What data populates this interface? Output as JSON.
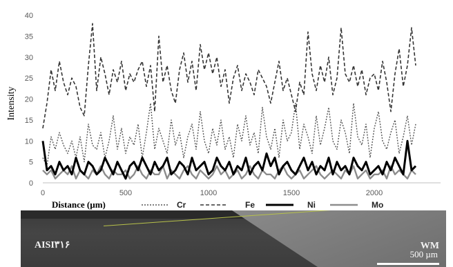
{
  "chart_data": {
    "type": "line",
    "ylabel": "Intensity",
    "xlabel": "Distance (µm)",
    "xlim": [
      0,
      2400
    ],
    "ylim": [
      0,
      40
    ],
    "yticks": [
      0,
      5,
      10,
      15,
      20,
      25,
      30,
      35,
      40
    ],
    "xticks": [
      0,
      500,
      1000,
      1500,
      2000
    ],
    "grid": false,
    "legend_position": "bottom",
    "series": [
      {
        "name": "Cr",
        "style": "dotted",
        "color": "#555555",
        "x": [
          0,
          25,
          50,
          75,
          100,
          125,
          150,
          175,
          200,
          225,
          250,
          275,
          300,
          325,
          350,
          375,
          400,
          425,
          450,
          475,
          500,
          525,
          550,
          575,
          600,
          625,
          650,
          675,
          700,
          725,
          750,
          775,
          800,
          825,
          850,
          875,
          900,
          925,
          950,
          975,
          1000,
          1025,
          1050,
          1075,
          1100,
          1125,
          1150,
          1175,
          1200,
          1225,
          1250,
          1275,
          1300,
          1325,
          1350,
          1375,
          1400,
          1425,
          1450,
          1475,
          1500,
          1525,
          1550,
          1575,
          1600,
          1625,
          1650,
          1675,
          1700,
          1725,
          1750,
          1775,
          1800,
          1825,
          1850,
          1875,
          1900,
          1925,
          1950,
          1975,
          2000,
          2025,
          2050,
          2075,
          2100,
          2125,
          2150,
          2175,
          2200,
          2225,
          2250
        ],
        "y": [
          6,
          4,
          11,
          8,
          12,
          9,
          7,
          10,
          6,
          11,
          5,
          14,
          9,
          8,
          12,
          6,
          10,
          16,
          8,
          13,
          7,
          11,
          9,
          14,
          6,
          12,
          19,
          8,
          13,
          10,
          7,
          15,
          9,
          12,
          6,
          11,
          14,
          8,
          17,
          10,
          7,
          13,
          9,
          15,
          8,
          11,
          6,
          14,
          10,
          16,
          9,
          12,
          7,
          18,
          11,
          8,
          13,
          6,
          15,
          10,
          12,
          19,
          8,
          14,
          11,
          7,
          16,
          9,
          13,
          18,
          10,
          8,
          15,
          12,
          7,
          19,
          11,
          9,
          14,
          6,
          13,
          17,
          10,
          8,
          12,
          15,
          7,
          11,
          16,
          9,
          14
        ]
      },
      {
        "name": "Fe",
        "style": "dashed",
        "color": "#333333",
        "x": [
          0,
          25,
          50,
          75,
          100,
          125,
          150,
          175,
          200,
          225,
          250,
          275,
          300,
          325,
          350,
          375,
          400,
          425,
          450,
          475,
          500,
          525,
          550,
          575,
          600,
          625,
          650,
          675,
          700,
          725,
          750,
          775,
          800,
          825,
          850,
          875,
          900,
          925,
          950,
          975,
          1000,
          1025,
          1050,
          1075,
          1100,
          1125,
          1150,
          1175,
          1200,
          1225,
          1250,
          1275,
          1300,
          1325,
          1350,
          1375,
          1400,
          1425,
          1450,
          1475,
          1500,
          1525,
          1550,
          1575,
          1600,
          1625,
          1650,
          1675,
          1700,
          1725,
          1750,
          1775,
          1800,
          1825,
          1850,
          1875,
          1900,
          1925,
          1950,
          1975,
          2000,
          2025,
          2050,
          2075,
          2100,
          2125,
          2150,
          2175,
          2200,
          2225,
          2250
        ],
        "y": [
          13,
          19,
          27,
          22,
          29,
          24,
          21,
          25,
          23,
          18,
          16,
          28,
          38,
          22,
          30,
          26,
          21,
          27,
          24,
          29,
          22,
          26,
          24,
          27,
          29,
          23,
          28,
          17,
          35,
          24,
          28,
          22,
          19,
          27,
          31,
          24,
          29,
          22,
          33,
          27,
          31,
          26,
          30,
          23,
          27,
          19,
          25,
          28,
          22,
          26,
          24,
          21,
          27,
          25,
          23,
          19,
          24,
          29,
          22,
          25,
          21,
          17,
          24,
          21,
          36,
          26,
          22,
          28,
          24,
          30,
          21,
          25,
          37,
          26,
          24,
          28,
          23,
          27,
          21,
          25,
          26,
          22,
          29,
          24,
          17,
          26,
          32,
          23,
          28,
          37,
          28
        ]
      },
      {
        "name": "Ni",
        "style": "solid-thick",
        "color": "#000000",
        "x": [
          0,
          25,
          50,
          75,
          100,
          125,
          150,
          175,
          200,
          225,
          250,
          275,
          300,
          325,
          350,
          375,
          400,
          425,
          450,
          475,
          500,
          525,
          550,
          575,
          600,
          625,
          650,
          675,
          700,
          725,
          750,
          775,
          800,
          825,
          850,
          875,
          900,
          925,
          950,
          975,
          1000,
          1025,
          1050,
          1075,
          1100,
          1125,
          1150,
          1175,
          1200,
          1225,
          1250,
          1275,
          1300,
          1325,
          1350,
          1375,
          1400,
          1425,
          1450,
          1475,
          1500,
          1525,
          1550,
          1575,
          1600,
          1625,
          1650,
          1675,
          1700,
          1725,
          1750,
          1775,
          1800,
          1825,
          1850,
          1875,
          1900,
          1925,
          1950,
          1975,
          2000,
          2025,
          2050,
          2075,
          2100,
          2125,
          2150,
          2175,
          2200,
          2225,
          2250
        ],
        "y": [
          10,
          3,
          4,
          2,
          5,
          3,
          4,
          2,
          6,
          3,
          2,
          5,
          4,
          2,
          3,
          6,
          4,
          2,
          5,
          3,
          1,
          4,
          5,
          3,
          6,
          4,
          2,
          5,
          3,
          4,
          6,
          2,
          3,
          5,
          4,
          2,
          6,
          3,
          4,
          5,
          2,
          3,
          6,
          4,
          3,
          5,
          2,
          4,
          3,
          6,
          2,
          4,
          5,
          3,
          7,
          4,
          6,
          2,
          4,
          5,
          3,
          2,
          4,
          6,
          3,
          5,
          2,
          4,
          3,
          6,
          2,
          5,
          3,
          4,
          2,
          6,
          4,
          3,
          5,
          2,
          3,
          4,
          2,
          5,
          3,
          6,
          4,
          2,
          10,
          3,
          4
        ]
      },
      {
        "name": "Mo",
        "style": "solid-gray",
        "color": "#8c8c8c",
        "x": [
          0,
          25,
          50,
          75,
          100,
          125,
          150,
          175,
          200,
          225,
          250,
          275,
          300,
          325,
          350,
          375,
          400,
          425,
          450,
          475,
          500,
          525,
          550,
          575,
          600,
          625,
          650,
          675,
          700,
          725,
          750,
          775,
          800,
          825,
          850,
          875,
          900,
          925,
          950,
          975,
          1000,
          1025,
          1050,
          1075,
          1100,
          1125,
          1150,
          1175,
          1200,
          1225,
          1250,
          1275,
          1300,
          1325,
          1350,
          1375,
          1400,
          1425,
          1450,
          1475,
          1500,
          1525,
          1550,
          1575,
          1600,
          1625,
          1650,
          1675,
          1700,
          1725,
          1750,
          1775,
          1800,
          1825,
          1850,
          1875,
          1900,
          1925,
          1950,
          1975,
          2000,
          2025,
          2050,
          2075,
          2100,
          2125,
          2150,
          2175,
          2200,
          2225,
          2250
        ],
        "y": [
          3,
          2,
          3,
          1,
          2,
          3,
          2,
          4,
          1,
          3,
          2,
          1,
          3,
          2,
          4,
          2,
          1,
          3,
          2,
          2,
          3,
          1,
          2,
          4,
          2,
          1,
          3,
          2,
          2,
          4,
          1,
          3,
          2,
          1,
          3,
          4,
          2,
          1,
          3,
          2,
          1,
          2,
          4,
          2,
          3,
          1,
          2,
          3,
          1,
          2,
          4,
          2,
          1,
          3,
          2,
          2,
          1,
          3,
          4,
          2,
          1,
          2,
          3,
          1,
          2,
          3,
          4,
          2,
          1,
          2,
          3,
          2,
          1,
          3,
          2,
          4,
          1,
          2,
          3,
          1,
          2,
          2,
          3,
          1,
          4,
          2,
          3,
          2,
          1,
          3,
          2
        ]
      }
    ]
  },
  "image": {
    "left_label": "AISI۳۱۶",
    "right_label": "WM",
    "scale_label": "500 µm"
  }
}
